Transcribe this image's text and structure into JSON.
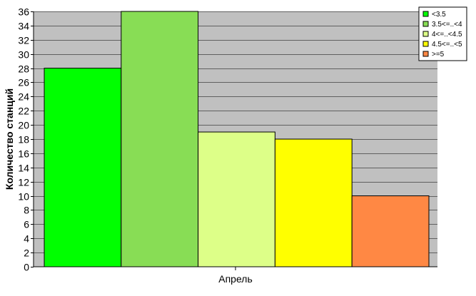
{
  "chart_data": {
    "type": "bar",
    "categories": [
      "Апрель"
    ],
    "series": [
      {
        "name": "<3.5",
        "values": [
          28
        ],
        "color": "#00ff00"
      },
      {
        "name": "3.5<=..<4",
        "values": [
          36
        ],
        "color": "#88dd55"
      },
      {
        "name": "4<=..<4.5",
        "values": [
          19
        ],
        "color": "#ddff88"
      },
      {
        "name": "4.5<=..<5",
        "values": [
          18
        ],
        "color": "#ffff00"
      },
      {
        "name": ">=5",
        "values": [
          10
        ],
        "color": "#ff8844"
      }
    ],
    "title": "",
    "xlabel": "",
    "ylabel": "Количество станций",
    "ylim": [
      0,
      36
    ],
    "ytick_step": 2,
    "grid": true,
    "legend": "top-right",
    "plot_background": "#c0c0c0"
  }
}
